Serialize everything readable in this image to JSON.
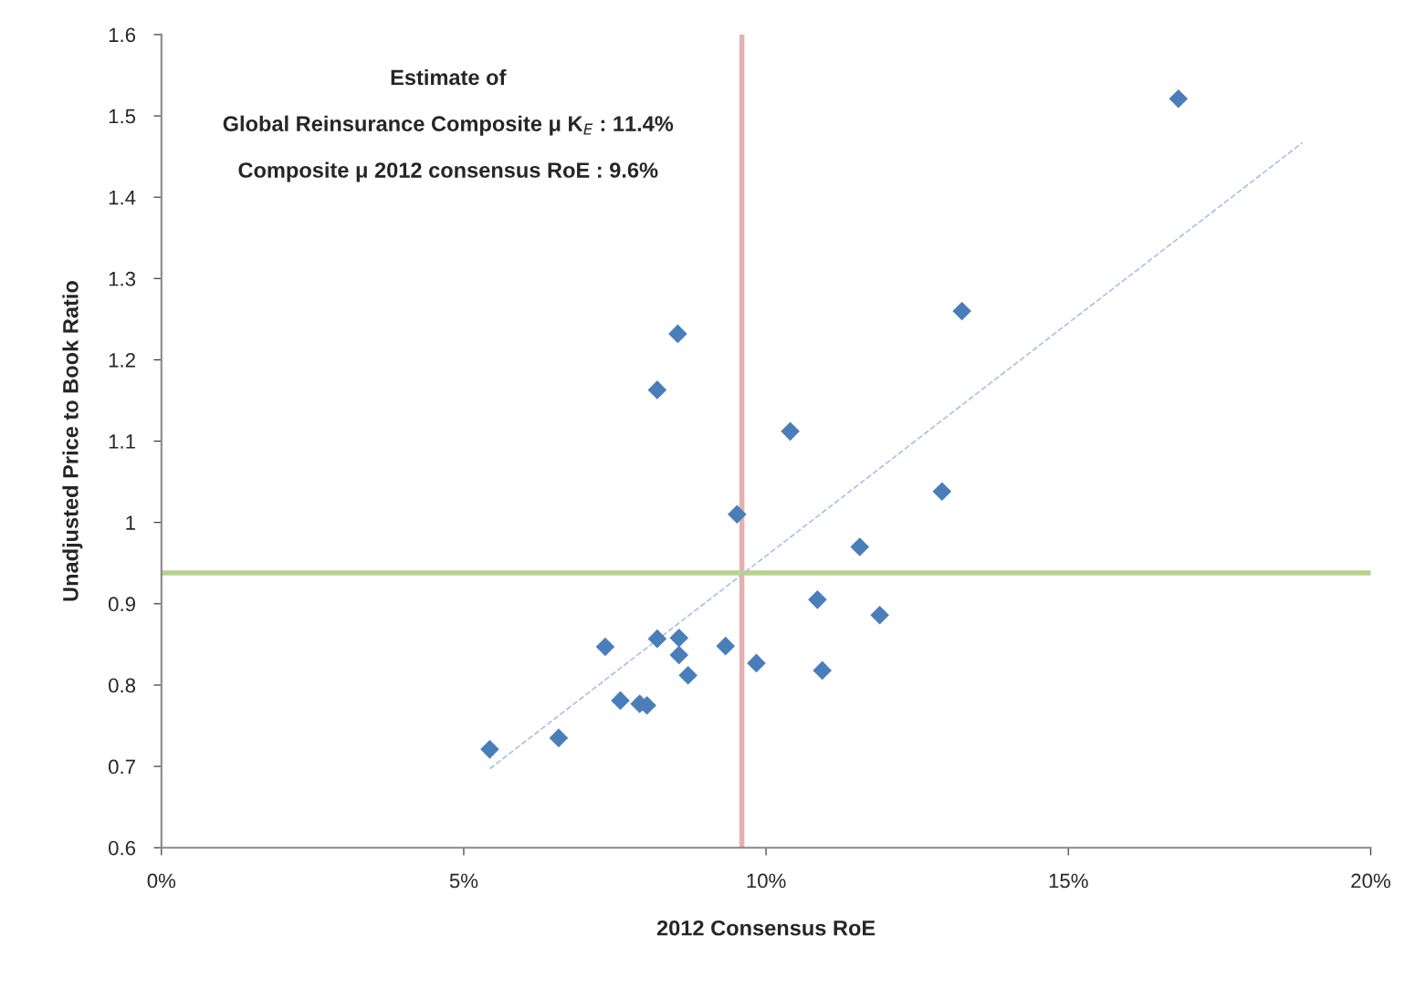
{
  "chart_data": {
    "type": "scatter",
    "xlabel": "2012 Consensus RoE",
    "ylabel": "Unadjusted Price to Book Ratio",
    "annotations": [
      "Estimate of",
      "Global Reinsurance Composite μ K$_{E}$ : 11.4%",
      "Composite μ 2012 consensus RoE : 9.6%"
    ],
    "xlim": [
      0,
      20
    ],
    "xticks": [
      {
        "value": 0,
        "label": "0%"
      },
      {
        "value": 5,
        "label": "5%"
      },
      {
        "value": 10,
        "label": "10%"
      },
      {
        "value": 15,
        "label": "15%"
      },
      {
        "value": 20,
        "label": "20%"
      }
    ],
    "ylim": [
      0.6,
      1.6
    ],
    "yticks": [
      {
        "value": 0.6,
        "label": "0.6"
      },
      {
        "value": 0.7,
        "label": "0.7"
      },
      {
        "value": 0.8,
        "label": "0.8"
      },
      {
        "value": 0.9,
        "label": "0.9"
      },
      {
        "value": 1,
        "label": "1"
      },
      {
        "value": 1.1,
        "label": "1.1"
      },
      {
        "value": 1.2,
        "label": "1.2"
      },
      {
        "value": 1.3,
        "label": "1.3"
      },
      {
        "value": 1.4,
        "label": "1.4"
      },
      {
        "value": 1.5,
        "label": "1.5"
      },
      {
        "value": 1.6,
        "label": "1.6"
      }
    ],
    "grid": false,
    "legend": false,
    "ref_lines": [
      {
        "axis": "x",
        "value": 9.6,
        "color": "#e6b0b0"
      },
      {
        "axis": "y",
        "value": 0.938,
        "color": "#b6d38c"
      }
    ],
    "series": [
      {
        "type": "scatter",
        "color": "#4a7ebb",
        "marker": "diamond",
        "x": [
          5.43,
          6.57,
          7.34,
          7.59,
          7.91,
          8.03,
          8.2,
          8.2,
          8.54,
          8.56,
          8.56,
          8.71,
          9.33,
          9.52,
          9.84,
          10.4,
          10.85,
          10.93,
          11.55,
          11.88,
          12.91,
          13.24,
          16.82
        ],
        "values": [
          0.721,
          0.735,
          0.847,
          0.781,
          0.777,
          0.775,
          1.163,
          0.857,
          1.232,
          0.858,
          0.837,
          0.812,
          0.848,
          1.01,
          0.827,
          1.112,
          0.905,
          0.818,
          0.97,
          0.886,
          1.038,
          1.26,
          1.521
        ]
      },
      {
        "type": "line",
        "color": "#a9c0e8",
        "line_style": "dashed",
        "marker": "none",
        "x": [
          5.43,
          18.87
        ],
        "values": [
          0.697,
          1.467
        ]
      }
    ]
  }
}
